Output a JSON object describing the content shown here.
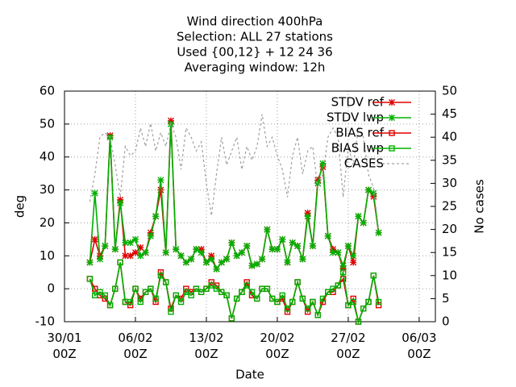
{
  "chart_data": {
    "type": "line",
    "title_lines": [
      "Wind direction 400hPa",
      "Selection: ALL     27 stations",
      "Used {00,12} + 12 24 36",
      "Averaging window: 12h"
    ],
    "xlabel": "Date",
    "ylabel": "deg",
    "y2label": "No cases",
    "x": [
      2.5,
      3,
      3.5,
      4,
      4.5,
      5,
      5.5,
      6,
      6.5,
      7,
      7.5,
      8,
      8.5,
      9,
      9.5,
      10,
      10.5,
      11,
      11.5,
      12,
      12.5,
      13,
      13.5,
      14,
      14.5,
      15,
      15.5,
      16,
      16.5,
      17,
      17.5,
      18,
      18.5,
      19,
      19.5,
      20,
      20.5,
      21,
      21.5,
      22,
      22.5,
      23,
      23.5,
      24,
      24.5,
      25,
      25.5,
      26,
      26.5,
      27,
      27.5,
      28,
      28.5,
      29,
      29.5,
      30,
      30.5,
      31
    ],
    "xlim": [
      0,
      36.6
    ],
    "xticks": [
      {
        "value": 0,
        "label": "30/01\n00Z"
      },
      {
        "value": 7,
        "label": "06/02\n00Z"
      },
      {
        "value": 14,
        "label": "13/02\n00Z"
      },
      {
        "value": 21,
        "label": "20/02\n00Z"
      },
      {
        "value": 28,
        "label": "27/02\n00Z"
      },
      {
        "value": 35,
        "label": "06/03\n00Z"
      }
    ],
    "ylim": [
      -10,
      60
    ],
    "yticks": [
      -10,
      0,
      10,
      20,
      30,
      40,
      50,
      60
    ],
    "y2lim": [
      0,
      50
    ],
    "y2ticks": [
      0,
      5,
      10,
      15,
      20,
      25,
      30,
      35,
      40,
      45,
      50
    ],
    "grid": true,
    "legend": "top right",
    "series": [
      {
        "name": "STDV ref",
        "color": "#e00000",
        "marker": "star",
        "values": [
          8,
          15,
          10,
          13,
          46.5,
          12,
          27,
          10,
          10,
          11,
          12.5,
          11,
          17,
          22,
          30,
          11,
          51,
          12,
          10,
          8,
          9,
          12,
          12,
          8,
          10,
          6,
          8,
          9,
          14,
          10,
          11,
          13,
          7,
          7.5,
          9,
          18,
          12,
          12,
          15,
          8,
          14,
          13,
          9,
          23,
          13,
          33,
          37,
          16,
          12,
          11,
          6,
          13,
          8,
          22,
          20,
          30,
          28,
          17
        ]
      },
      {
        "name": "STDV lwp",
        "color": "#00b000",
        "marker": "star",
        "values": [
          8,
          29,
          9,
          13,
          46,
          12,
          26,
          14,
          14,
          15,
          10,
          11,
          16,
          22,
          33,
          11,
          50,
          12,
          10,
          8,
          9,
          12,
          11,
          8,
          9,
          6,
          8,
          9,
          14,
          10,
          11,
          13,
          7,
          7.5,
          9,
          18,
          12,
          12,
          15,
          8,
          14,
          13,
          9,
          22,
          13,
          32,
          38,
          16,
          11,
          11,
          7,
          13,
          10,
          22,
          20,
          30,
          29,
          17
        ]
      },
      {
        "name": "BIAS ref",
        "color": "#e00000",
        "marker": "square",
        "values": [
          3,
          0,
          -2,
          -3,
          -5,
          0,
          8,
          -4,
          -5,
          0,
          -3,
          -1,
          0,
          -4,
          5,
          2,
          -6,
          -2,
          -3,
          0,
          -1,
          0,
          -1,
          0,
          2,
          1,
          -1,
          -2,
          -9,
          -3,
          -1,
          2,
          -2,
          -3,
          0,
          0,
          -3,
          -4,
          -3,
          -7,
          -4,
          2,
          -3,
          -7,
          -4,
          -8,
          -4,
          -1,
          -1,
          1,
          3,
          -5,
          -3,
          -10,
          -6,
          -4,
          4,
          -5
        ]
      },
      {
        "name": "BIAS lwp",
        "color": "#00b000",
        "marker": "square",
        "values": [
          3,
          -2,
          -1,
          -2,
          -5,
          0,
          8,
          -4,
          -4,
          0,
          -4,
          -1,
          0,
          -3,
          4,
          2,
          -7,
          -2,
          -4,
          -1,
          -2,
          0,
          -1,
          0,
          1,
          0,
          -1,
          -2,
          -9,
          -3,
          -1,
          1,
          -1,
          -3,
          0,
          0,
          -3,
          -4,
          -2,
          -6,
          -4,
          2,
          -3,
          -6,
          -4,
          -8,
          -3,
          -1,
          0,
          1,
          5,
          -5,
          -4,
          -10,
          -6,
          -4,
          4,
          -4
        ]
      },
      {
        "name": "CASES",
        "color": "#a0a0a0",
        "marker": "none",
        "dashed": true,
        "axis": "y2",
        "values": [
          26,
          32,
          40,
          41,
          40,
          34,
          27,
          38,
          36,
          37,
          42,
          38,
          43,
          37,
          41,
          38,
          43,
          40,
          33,
          42,
          40,
          37,
          39,
          30,
          23,
          32,
          40,
          34,
          37,
          40,
          33,
          38,
          35,
          38,
          45,
          38,
          40,
          36,
          33,
          27,
          36,
          40,
          32,
          37,
          38,
          29,
          32,
          40,
          42,
          40,
          27,
          38,
          34,
          42,
          40,
          32,
          29,
          20
        ]
      }
    ]
  }
}
